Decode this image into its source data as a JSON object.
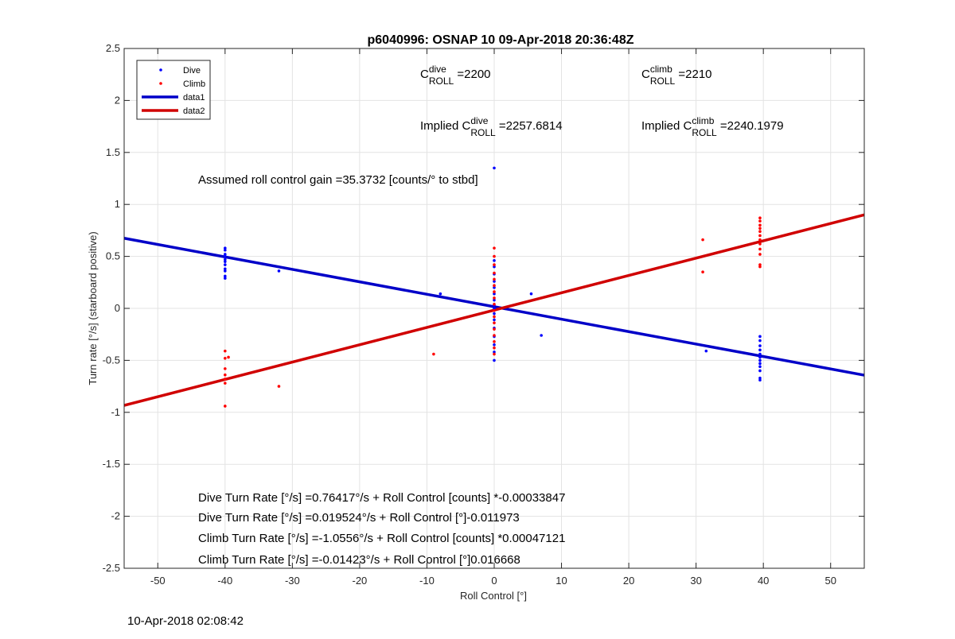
{
  "footer": {
    "timestamp": "10-Apr-2018 02:08:42"
  },
  "chart_data": {
    "type": "scatter",
    "title": "p6040996: OSNAP 10 09-Apr-2018 20:36:48Z",
    "xlabel": "Roll Control [°]",
    "ylabel": "Turn rate [°/s] (starboard positive)",
    "xlim": [
      -55,
      55
    ],
    "ylim": [
      -2.5,
      2.5
    ],
    "xticks": [
      -50,
      -40,
      -30,
      -20,
      -10,
      0,
      10,
      20,
      30,
      40,
      50
    ],
    "yticks": [
      -2.5,
      -2,
      -1.5,
      -1,
      -0.5,
      0,
      0.5,
      1,
      1.5,
      2,
      2.5
    ],
    "grid": true,
    "legend_position": "top-left",
    "colors": {
      "dive": "#0000ff",
      "climb": "#ff0000",
      "data1": "#0000c8",
      "data2": "#d00000"
    },
    "series": [
      {
        "name": "Dive",
        "kind": "points",
        "points": [
          [
            -40,
            0.58
          ],
          [
            -40,
            0.56
          ],
          [
            -40,
            0.52
          ],
          [
            -40,
            0.5
          ],
          [
            -40,
            0.47
          ],
          [
            -40,
            0.45
          ],
          [
            -40,
            0.42
          ],
          [
            -40,
            0.38
          ],
          [
            -40,
            0.36
          ],
          [
            -40,
            0.31
          ],
          [
            -40,
            0.29
          ],
          [
            -32,
            0.36
          ],
          [
            -8,
            0.14
          ],
          [
            0,
            1.35
          ],
          [
            0,
            0.46
          ],
          [
            0,
            0.4
          ],
          [
            0,
            0.33
          ],
          [
            0,
            0.26
          ],
          [
            0,
            0.2
          ],
          [
            0,
            0.14
          ],
          [
            0,
            0.08
          ],
          [
            0,
            0.03
          ],
          [
            0,
            0
          ],
          [
            0,
            -0.05
          ],
          [
            0,
            -0.11
          ],
          [
            0,
            -0.19
          ],
          [
            0,
            -0.27
          ],
          [
            0,
            -0.35
          ],
          [
            0,
            -0.42
          ],
          [
            0,
            -0.5
          ],
          [
            5.5,
            0.14
          ],
          [
            7,
            -0.26
          ],
          [
            31.5,
            -0.41
          ],
          [
            39.5,
            -0.27
          ],
          [
            39.5,
            -0.31
          ],
          [
            39.5,
            -0.36
          ],
          [
            39.5,
            -0.4
          ],
          [
            39.5,
            -0.44
          ],
          [
            39.5,
            -0.47
          ],
          [
            39.5,
            -0.5
          ],
          [
            39.5,
            -0.53
          ],
          [
            39.5,
            -0.56
          ],
          [
            39.5,
            -0.6
          ],
          [
            39.5,
            -0.67
          ],
          [
            39.5,
            -0.69
          ]
        ]
      },
      {
        "name": "Climb",
        "kind": "points",
        "points": [
          [
            -40,
            -0.41
          ],
          [
            -40,
            -0.48
          ],
          [
            -40,
            -0.58
          ],
          [
            -40,
            -0.64
          ],
          [
            -40,
            -0.68
          ],
          [
            -40,
            -0.72
          ],
          [
            -40,
            -0.94
          ],
          [
            -39.5,
            -0.47
          ],
          [
            -32,
            -0.75
          ],
          [
            -9,
            -0.44
          ],
          [
            0,
            0.58
          ],
          [
            0,
            0.5
          ],
          [
            0,
            0.42
          ],
          [
            0,
            0.34
          ],
          [
            0,
            0.28
          ],
          [
            0,
            0.22
          ],
          [
            0,
            0.16
          ],
          [
            0,
            0.1
          ],
          [
            0,
            0.04
          ],
          [
            0,
            -0.02
          ],
          [
            0,
            -0.08
          ],
          [
            0,
            -0.14
          ],
          [
            0,
            -0.2
          ],
          [
            0,
            -0.26
          ],
          [
            0,
            -0.32
          ],
          [
            0,
            -0.38
          ],
          [
            0,
            -0.44
          ],
          [
            31,
            0.66
          ],
          [
            31,
            0.35
          ],
          [
            39.5,
            0.87
          ],
          [
            39.5,
            0.84
          ],
          [
            39.5,
            0.8
          ],
          [
            39.5,
            0.77
          ],
          [
            39.5,
            0.74
          ],
          [
            39.5,
            0.7
          ],
          [
            39.5,
            0.66
          ],
          [
            39.5,
            0.62
          ],
          [
            39.5,
            0.57
          ],
          [
            39.5,
            0.52
          ],
          [
            39.5,
            0.42
          ],
          [
            39.5,
            0.4
          ]
        ]
      },
      {
        "name": "data1",
        "kind": "line",
        "x": [
          -55,
          55
        ],
        "y": [
          0.6745,
          -0.6426
        ]
      },
      {
        "name": "data2",
        "kind": "line",
        "x": [
          -55,
          55
        ],
        "y": [
          -0.9334,
          0.9
        ]
      }
    ],
    "annotations": [
      {
        "id": "c_dive",
        "base": "C",
        "sup": "dive",
        "sub": "ROLL",
        "rest": " =2200"
      },
      {
        "id": "c_climb",
        "base": "C",
        "sup": "climb",
        "sub": "ROLL",
        "rest": " =2210"
      },
      {
        "id": "implied_dive",
        "prefix": "Implied ",
        "base": "C",
        "sup": "dive",
        "sub": "ROLL",
        "rest": " =2257.6814"
      },
      {
        "id": "implied_climb",
        "prefix": "Implied ",
        "base": "C",
        "sup": "climb",
        "sub": "ROLL",
        "rest": " =2240.1979"
      },
      {
        "id": "gain",
        "text": "Assumed roll control gain =35.3732 [counts/° to stbd]"
      },
      {
        "id": "fit1",
        "text": "Dive Turn Rate [°/s] =0.76417°/s + Roll Control [counts] *-0.00033847"
      },
      {
        "id": "fit2",
        "text": "Dive Turn Rate [°/s] =0.019524°/s + Roll Control [°]-0.011973"
      },
      {
        "id": "fit3",
        "text": "Climb Turn Rate [°/s] =-1.0556°/s + Roll Control [counts] *0.00047121"
      },
      {
        "id": "fit4",
        "text": "Climb Turn Rate [°/s] =-0.01423°/s + Roll Control [°]0.016668"
      }
    ]
  }
}
